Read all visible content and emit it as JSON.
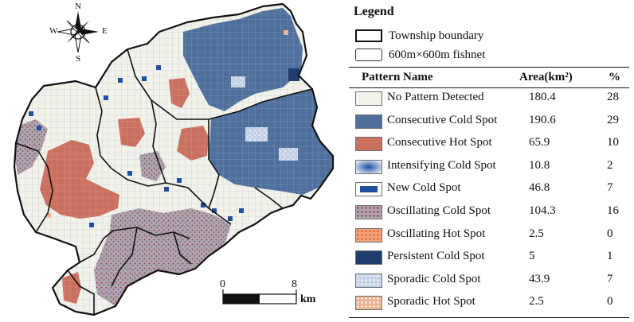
{
  "map": {
    "compass": {
      "north": "N",
      "south": "S",
      "east": "E",
      "west": "W"
    },
    "scale": {
      "start_label": "0",
      "end_label": "8",
      "unit": "km"
    },
    "colors": {
      "no_pattern": "#f2f2ea",
      "consecutive_cold": "#4f6f9c",
      "consecutive_hot": "#c9705f",
      "new_cold": "#1f4fa0",
      "persistent_cold": "#1f3d6e",
      "oscillating_cold_bg": "#a8a6b4",
      "oscillating_cold_dot": "#b0302a",
      "sporadic_cold": "#c4d0e6",
      "sporadic_hot": "#f0b292",
      "boundary": "#111111"
    }
  },
  "legend": {
    "title": "Legend",
    "township_boundary": "Township boundary",
    "fishnet": "600m×600m fishnet",
    "headers": {
      "name": "Pattern Name",
      "area": "Area(km²)",
      "pct": "%"
    },
    "patterns": [
      {
        "name": "No Pattern Detected",
        "area": "180.4",
        "pct": "28",
        "swatch": "no_pattern"
      },
      {
        "name": "Consecutive Cold Spot",
        "area": "190.6",
        "pct": "29",
        "swatch": "consecutive_cold"
      },
      {
        "name": "Consecutive Hot Spot",
        "area": "65.9",
        "pct": "10",
        "swatch": "consecutive_hot"
      },
      {
        "name": "Intensifying Cold Spot",
        "area": "10.8",
        "pct": "2",
        "swatch": "intensifying_cold"
      },
      {
        "name": "New Cold Spot",
        "area": "46.8",
        "pct": "7",
        "swatch": "new_cold"
      },
      {
        "name": "Oscillating Cold Spot",
        "area": "104.3",
        "pct": "16",
        "swatch": "oscillating_cold"
      },
      {
        "name": "Oscillating Hot Spot",
        "area": "2.5",
        "pct": "0",
        "swatch": "oscillating_hot"
      },
      {
        "name": "Persistent Cold Spot",
        "area": "5",
        "pct": "1",
        "swatch": "persistent_cold"
      },
      {
        "name": "Sporadic Cold Spot",
        "area": "43.9",
        "pct": "7",
        "swatch": "sporadic_cold"
      },
      {
        "name": "Sporadic Hot Spot",
        "area": "2.5",
        "pct": "0",
        "swatch": "sporadic_hot"
      }
    ]
  }
}
